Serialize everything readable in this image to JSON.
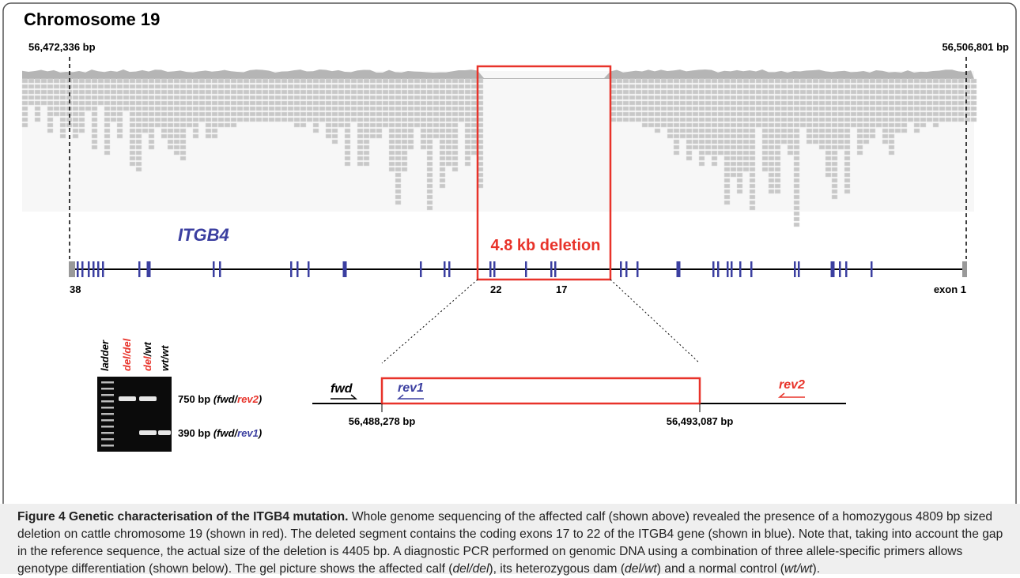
{
  "figure": {
    "title": "Chromosome 19",
    "left_coordinate": "56,472,336 bp",
    "right_coordinate": "56,506,801 bp",
    "gene": "ITGB4",
    "deletion_label": "4.8 kb deletion",
    "exon_labels": [
      "38",
      "22",
      "17",
      "exon 1"
    ],
    "zoom": {
      "primers": [
        "fwd",
        "rev1",
        "rev2"
      ],
      "coordinates": [
        "56,488,278 bp",
        "56,493,087 bp"
      ]
    },
    "gel": {
      "lanes": [
        [
          "ladder"
        ],
        [
          "del/del"
        ],
        [
          "del",
          "/wt"
        ],
        [
          "wt/wt"
        ]
      ],
      "bands": [
        {
          "size": "750 bp",
          "primers": [
            "(fwd/",
            "rev2",
            ")"
          ]
        },
        {
          "size": "390 bp",
          "primers": [
            "(fwd/",
            "rev1",
            ")"
          ]
        }
      ]
    }
  },
  "caption": {
    "label": "Figure 4 Genetic characterisation of the ITGB4 mutation.",
    "body": [
      " Whole genome sequencing of the affected calf (shown above) revealed the presence of a homozygous 4809 bp sized deletion on cattle chromosome 19 (shown in red). The deleted segment contains the coding exons 17 to 22 of the ITGB4 gene (shown in blue). Note that, taking into account the gap in the reference sequence, the actual size of the deletion is 4405 bp. A diagnostic PCR performed on genomic DNA using a combination of three allele-specific primers allows genotype differentiation (shown below). The gel picture shows the affected calf (",
      "del/del",
      "), its heterozygous dam (",
      "del/wt",
      ") and a normal control (",
      "wt/wt",
      ")."
    ]
  }
}
